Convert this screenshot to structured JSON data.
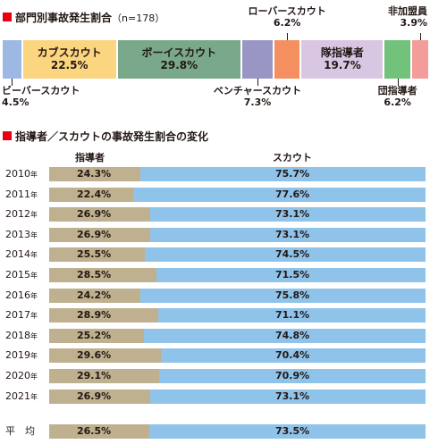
{
  "chart_data": [
    {
      "type": "bar",
      "title": "部門別事故発生割合",
      "subtitle": "（n=178）",
      "unit": "%",
      "categories": [
        "ビーバースカウト",
        "カブスカウト",
        "ボーイスカウト",
        "ベンチャースカウト",
        "ローバースカウト",
        "隊指導者",
        "団指導者",
        "非加盟員"
      ],
      "values": [
        4.5,
        22.5,
        29.8,
        7.3,
        6.2,
        19.7,
        6.2,
        3.9
      ],
      "value_labels": [
        "4.5%",
        "22.5%",
        "29.8%",
        "7.3%",
        "6.2%",
        "19.7%",
        "6.2%",
        "3.9%"
      ],
      "colors": [
        "#9db8e2",
        "#fbd57f",
        "#7aa88a",
        "#9a96c4",
        "#f4905f",
        "#d9c6e2",
        "#72c27c",
        "#f49c9a"
      ]
    },
    {
      "type": "bar",
      "title": "指導者／スカウトの事故発生割合の変化",
      "unit": "%",
      "series_names": [
        "指導者",
        "スカウト"
      ],
      "colors": [
        "#bfb08f",
        "#8fc3ea"
      ],
      "rows": [
        {
          "label": "2010",
          "suffix": "年",
          "leader": 24.3,
          "scout": 75.7,
          "leader_label": "24.3%",
          "scout_label": "75.7%"
        },
        {
          "label": "2011",
          "suffix": "年",
          "leader": 22.4,
          "scout": 77.6,
          "leader_label": "22.4%",
          "scout_label": "77.6%"
        },
        {
          "label": "2012",
          "suffix": "年",
          "leader": 26.9,
          "scout": 73.1,
          "leader_label": "26.9%",
          "scout_label": "73.1%"
        },
        {
          "label": "2013",
          "suffix": "年",
          "leader": 26.9,
          "scout": 73.1,
          "leader_label": "26.9%",
          "scout_label": "73.1%"
        },
        {
          "label": "2014",
          "suffix": "年",
          "leader": 25.5,
          "scout": 74.5,
          "leader_label": "25.5%",
          "scout_label": "74.5%"
        },
        {
          "label": "2015",
          "suffix": "年",
          "leader": 28.5,
          "scout": 71.5,
          "leader_label": "28.5%",
          "scout_label": "71.5%"
        },
        {
          "label": "2016",
          "suffix": "年",
          "leader": 24.2,
          "scout": 75.8,
          "leader_label": "24.2%",
          "scout_label": "75.8%"
        },
        {
          "label": "2017",
          "suffix": "年",
          "leader": 28.9,
          "scout": 71.1,
          "leader_label": "28.9%",
          "scout_label": "71.1%"
        },
        {
          "label": "2018",
          "suffix": "年",
          "leader": 25.2,
          "scout": 74.8,
          "leader_label": "25.2%",
          "scout_label": "74.8%"
        },
        {
          "label": "2019",
          "suffix": "年",
          "leader": 29.6,
          "scout": 70.4,
          "leader_label": "29.6%",
          "scout_label": "70.4%"
        },
        {
          "label": "2020",
          "suffix": "年",
          "leader": 29.1,
          "scout": 70.9,
          "leader_label": "29.1%",
          "scout_label": "70.9%"
        },
        {
          "label": "2021",
          "suffix": "年",
          "leader": 26.9,
          "scout": 73.1,
          "leader_label": "26.9%",
          "scout_label": "73.1%"
        },
        {
          "label": "平　均",
          "suffix": "",
          "leader": 26.5,
          "scout": 73.5,
          "leader_label": "26.5%",
          "scout_label": "73.5%"
        }
      ]
    }
  ]
}
